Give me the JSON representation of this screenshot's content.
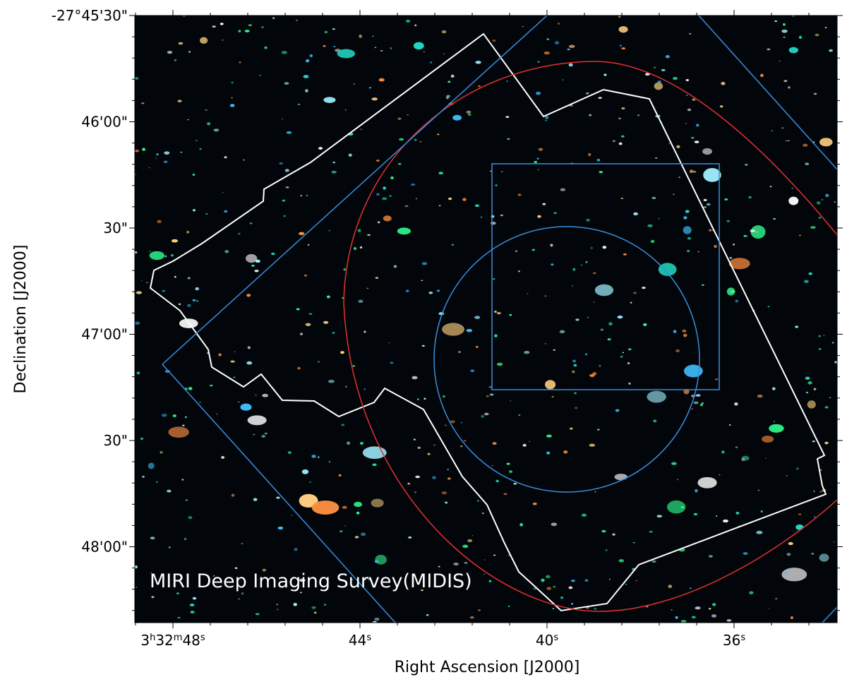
{
  "figure": {
    "annotation": "MIRI Deep Imaging Survey(MIDIS)",
    "x_axis": {
      "label": "Right Ascension [J2000]",
      "ticks": [
        [
          "3",
          "h",
          "32",
          "m",
          "48",
          "s"
        ],
        [
          "44",
          "s"
        ],
        [
          "40",
          "s"
        ],
        [
          "36",
          "s"
        ]
      ]
    },
    "y_axis": {
      "label": "Declination [J2000]",
      "ticks": [
        "-27°45'30\"",
        "46'00\"",
        "30\"",
        "47'00\"",
        "30\"",
        "48'00\""
      ]
    }
  }
}
